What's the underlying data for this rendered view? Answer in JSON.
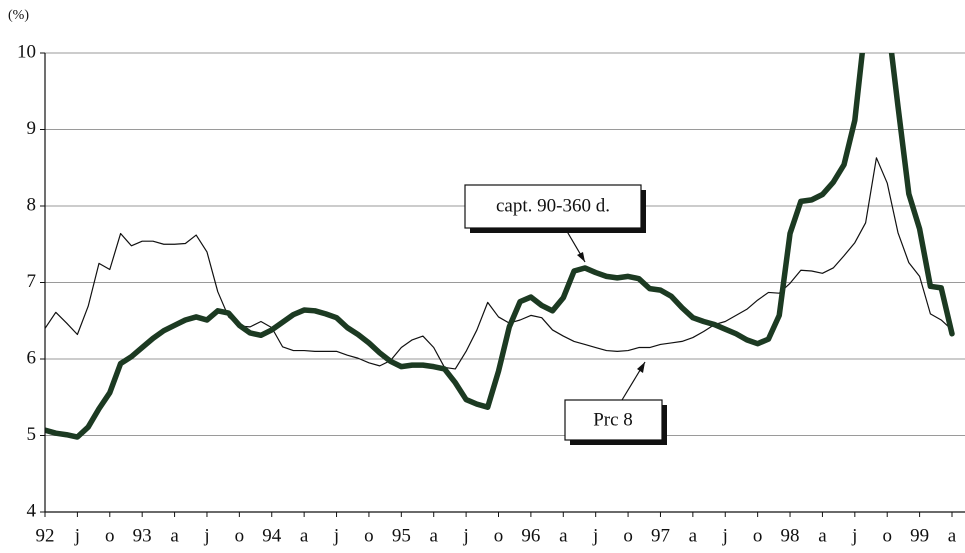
{
  "chart_data": {
    "type": "line",
    "y_label": "(%)",
    "ylim": [
      4,
      10
    ],
    "yticks": [
      4,
      5,
      6,
      7,
      8,
      9,
      10
    ],
    "grid": true,
    "categories": [
      "92",
      null,
      null,
      "j",
      null,
      null,
      "o",
      null,
      null,
      "93",
      null,
      null,
      "a",
      null,
      null,
      "j",
      null,
      null,
      "o",
      null,
      null,
      "94",
      null,
      null,
      "a",
      null,
      null,
      "j",
      null,
      null,
      "o",
      null,
      null,
      "95",
      null,
      null,
      "a",
      null,
      null,
      "j",
      null,
      null,
      "o",
      null,
      null,
      "96",
      null,
      null,
      "a",
      null,
      null,
      "j",
      null,
      null,
      "o",
      null,
      null,
      "97",
      null,
      null,
      "a",
      null,
      null,
      "j",
      null,
      null,
      "o",
      null,
      null,
      "98",
      null,
      null,
      "a",
      null,
      null,
      "j",
      null,
      null,
      "o",
      null,
      null,
      "99",
      null,
      null,
      "a"
    ],
    "series": [
      {
        "name": "Prc 8",
        "color": "#111111",
        "width": 1.2,
        "values": [
          6.4,
          6.61,
          6.47,
          6.32,
          6.69,
          7.25,
          7.17,
          7.64,
          7.48,
          7.54,
          7.54,
          7.5,
          7.5,
          7.51,
          7.62,
          7.4,
          6.88,
          6.55,
          6.43,
          6.42,
          6.49,
          6.41,
          6.16,
          6.11,
          6.11,
          6.1,
          6.1,
          6.1,
          6.05,
          6.01,
          5.95,
          5.91,
          5.98,
          6.15,
          6.25,
          6.3,
          6.15,
          5.89,
          5.87,
          6.1,
          6.38,
          6.74,
          6.55,
          6.47,
          6.51,
          6.57,
          6.54,
          6.38,
          6.3,
          6.23,
          6.19,
          6.15,
          6.11,
          6.1,
          6.11,
          6.15,
          6.15,
          6.19,
          6.21,
          6.23,
          6.28,
          6.36,
          6.45,
          6.49,
          6.57,
          6.65,
          6.77,
          6.87,
          6.86,
          6.99,
          7.16,
          7.15,
          7.12,
          7.19,
          7.35,
          7.52,
          7.78,
          8.63,
          8.3,
          7.65,
          7.26,
          7.08,
          6.59,
          6.51,
          6.38
        ]
      },
      {
        "name": "capt. 90-360 d.",
        "color": "#1c3a22",
        "width": 5.5,
        "values": [
          5.07,
          5.03,
          5.01,
          4.98,
          5.11,
          5.35,
          5.56,
          5.94,
          6.03,
          6.15,
          6.27,
          6.37,
          6.44,
          6.51,
          6.55,
          6.51,
          6.63,
          6.6,
          6.44,
          6.34,
          6.31,
          6.38,
          6.48,
          6.58,
          6.64,
          6.63,
          6.59,
          6.54,
          6.41,
          6.32,
          6.21,
          6.08,
          5.97,
          5.9,
          5.92,
          5.92,
          5.9,
          5.87,
          5.69,
          5.47,
          5.41,
          5.37,
          5.84,
          6.42,
          6.75,
          6.81,
          6.7,
          6.63,
          6.8,
          7.15,
          7.19,
          7.13,
          7.08,
          7.06,
          7.08,
          7.05,
          6.92,
          6.9,
          6.82,
          6.67,
          6.54,
          6.49,
          6.45,
          6.39,
          6.33,
          6.25,
          6.2,
          6.26,
          6.57,
          7.64,
          8.06,
          8.08,
          8.15,
          8.31,
          8.54,
          9.12,
          10.4,
          10.74,
          10.48,
          9.3,
          8.16,
          7.7,
          6.95,
          6.93,
          6.33
        ]
      }
    ]
  }
}
